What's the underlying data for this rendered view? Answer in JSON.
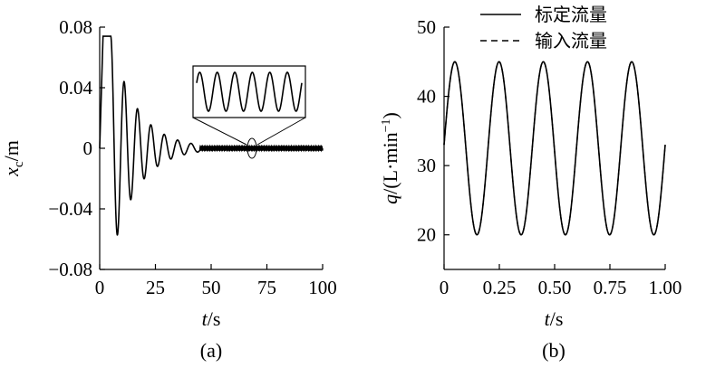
{
  "panels": {
    "a": {
      "caption": "(a)"
    },
    "b": {
      "caption": "(b)"
    }
  },
  "chart_data": [
    {
      "type": "line",
      "panel": "a",
      "xlabel_italic": "t",
      "xlabel_unit": "/s",
      "ylabel_italic": "x",
      "ylabel_sub": "c",
      "ylabel_unit": "/m",
      "xlim": [
        0,
        100
      ],
      "ylim": [
        -0.08,
        0.08
      ],
      "xticks": [
        0,
        25,
        50,
        75,
        100
      ],
      "xtick_labels": [
        "0",
        "25",
        "50",
        "75",
        "100"
      ],
      "yticks": [
        0.08,
        0.04,
        0,
        -0.04,
        -0.08
      ],
      "ytick_labels": [
        "0.08",
        "0.04",
        "0",
        "−0.04",
        "−0.08"
      ],
      "series": [
        {
          "description": "damped oscillation, saturated at start, settling to 0 with small sustained oscillation",
          "x": [
            0,
            1.5,
            2.5,
            5,
            6.5,
            9,
            12,
            15,
            18,
            21,
            24,
            27,
            30,
            33,
            36,
            40,
            45,
            100
          ],
          "y": [
            0,
            0.074,
            0.074,
            0.074,
            0.06,
            -0.06,
            0.051,
            -0.042,
            0.033,
            -0.026,
            0.021,
            -0.017,
            0.012,
            -0.009,
            0.006,
            0.003,
            0.001,
            0.001
          ]
        }
      ],
      "inset": {
        "description": "zoomed view of sustained oscillation near t≈67 s",
        "cycles": 6
      }
    },
    {
      "type": "line",
      "panel": "b",
      "xlabel_italic": "t",
      "xlabel_unit": "/s",
      "ylabel_italic": "q",
      "ylabel_unit": "/(L·min",
      "ylabel_sup": "−1",
      "ylabel_close": ")",
      "xlim": [
        0,
        1.0
      ],
      "ylim": [
        15,
        50
      ],
      "xticks": [
        0,
        0.25,
        0.5,
        0.75,
        1.0
      ],
      "xtick_labels": [
        "0",
        "0.25",
        "0.50",
        "0.75",
        "1.00"
      ],
      "yticks": [
        50,
        40,
        30,
        20
      ],
      "ytick_labels": [
        "50",
        "40",
        "30",
        "20"
      ],
      "legend": {
        "placement": "top-right"
      },
      "series": [
        {
          "name": "标定流量",
          "style": "solid",
          "mean": 32.5,
          "amplitude": 12.5,
          "period": 0.2,
          "start": 33
        },
        {
          "name": "输入流量",
          "style": "dashed",
          "mean": 32.5,
          "amplitude": 12.5,
          "period": 0.2,
          "start": 33
        }
      ]
    }
  ]
}
